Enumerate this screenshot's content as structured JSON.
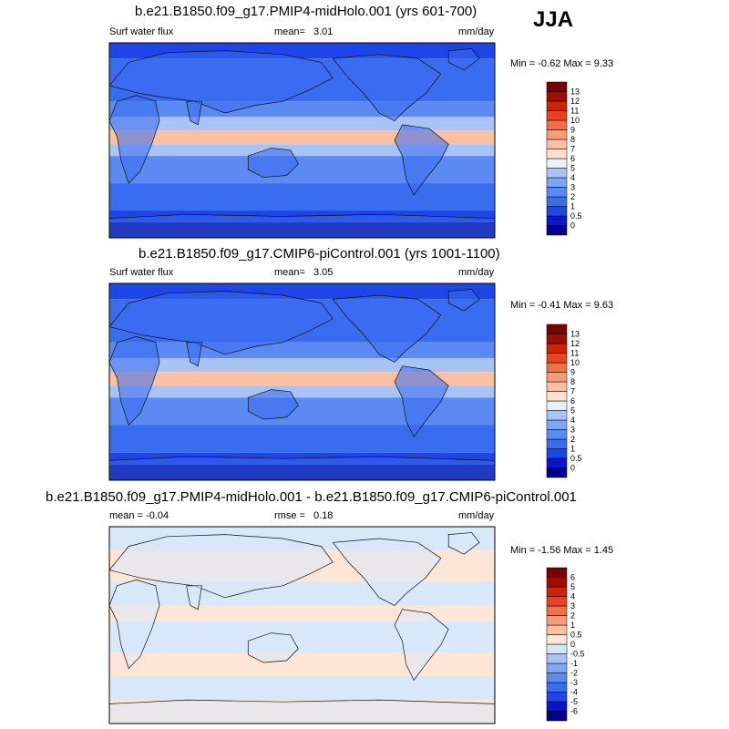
{
  "season": "JJA",
  "units": "mm/day",
  "panels": [
    {
      "title": "b.e21.B1850.f09_g17.PMIP4-midHolo.001 (yrs 601-700)",
      "left_label": "Surf water flux",
      "stat_label": "mean=",
      "stat_value": "3.01",
      "minmax": "Min =  -0.62 Max =   9.33"
    },
    {
      "title": "b.e21.B1850.f09_g17.CMIP6-piControl.001 (yrs 1001-1100)",
      "left_label": "Surf water flux",
      "stat_label": "mean=",
      "stat_value": "3.05",
      "minmax": "Min =  -0.41 Max =   9.63"
    },
    {
      "title": "b.e21.B1850.f09_g17.PMIP4-midHolo.001 - b.e21.B1850.f09_g17.CMIP6-piControl.001",
      "left_label": "mean =  -0.04",
      "stat_label": "rmse =",
      "stat_value": "0.18",
      "minmax": "Min =  -1.56 Max =   1.45"
    }
  ],
  "chart_data": [
    {
      "type": "heatmap",
      "title": "b.e21.B1850.f09_g17.PMIP4-midHolo.001 (yrs 601-700)",
      "variable": "Surf water flux",
      "units": "mm/day",
      "mean": 3.01,
      "min": -0.62,
      "max": 9.33,
      "levels": [
        "0",
        "0.5",
        "1",
        "2",
        "3",
        "4",
        "5",
        "6",
        "7",
        "8",
        "9",
        "10",
        "11",
        "12",
        "13"
      ],
      "colors": [
        "#00008b",
        "#0a14c8",
        "#1e46e6",
        "#3a6cf0",
        "#5a8af2",
        "#7fa6f4",
        "#a8c4f6",
        "#e8f0fa",
        "#fde0d0",
        "#fbc0a2",
        "#f79c78",
        "#f07048",
        "#e64422",
        "#cc2408",
        "#a00c00",
        "#780000"
      ]
    },
    {
      "type": "heatmap",
      "title": "b.e21.B1850.f09_g17.CMIP6-piControl.001 (yrs 1001-1100)",
      "variable": "Surf water flux",
      "units": "mm/day",
      "mean": 3.05,
      "min": -0.41,
      "max": 9.63,
      "levels": [
        "0",
        "0.5",
        "1",
        "2",
        "3",
        "4",
        "5",
        "6",
        "7",
        "8",
        "9",
        "10",
        "11",
        "12",
        "13"
      ],
      "colors": [
        "#00008b",
        "#0a14c8",
        "#1e46e6",
        "#3a6cf0",
        "#5a8af2",
        "#7fa6f4",
        "#a8c4f6",
        "#e8f0fa",
        "#fde0d0",
        "#fbc0a2",
        "#f79c78",
        "#f07048",
        "#e64422",
        "#cc2408",
        "#a00c00",
        "#780000"
      ]
    },
    {
      "type": "heatmap",
      "title": "b.e21.B1850.f09_g17.PMIP4-midHolo.001 - b.e21.B1850.f09_g17.CMIP6-piControl.001",
      "units": "mm/day",
      "mean": -0.04,
      "rmse": 0.18,
      "min": -1.56,
      "max": 1.45,
      "levels": [
        "-6",
        "-5",
        "-4",
        "-3",
        "-2",
        "-1",
        "-0.5",
        "0",
        "0.5",
        "1",
        "2",
        "3",
        "4",
        "5",
        "6"
      ],
      "colors": [
        "#00008b",
        "#0a14c8",
        "#1e46e6",
        "#3a6cf0",
        "#5a8af2",
        "#7fa6f4",
        "#a8c4f6",
        "#d8e8fa",
        "#fde6d6",
        "#fbc0a2",
        "#f79c78",
        "#f07048",
        "#e64422",
        "#cc2408",
        "#a00c00",
        "#780000"
      ]
    }
  ]
}
